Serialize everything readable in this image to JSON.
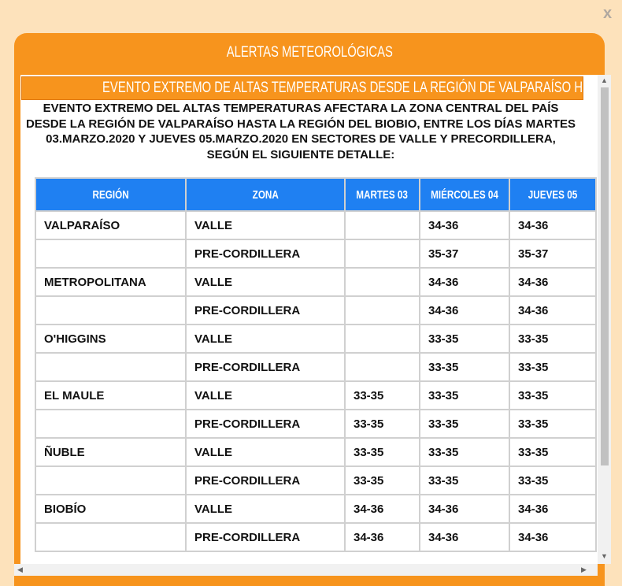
{
  "close_label": "x",
  "modal": {
    "title": "ALERTAS METEOROLÓGICAS",
    "banner": "EVENTO EXTREMO DE ALTAS TEMPERATURAS DESDE LA REGIÓN DE VALPARAÍSO HASTA EL BIOBIO",
    "description": "EVENTO EXTREMO DEL ALTAS TEMPERATURAS AFECTARA LA ZONA CENTRAL DEL PAÍS DESDE LA REGIÓN DE VALPARAÍSO HASTA LA REGIÓN DEL BIOBIO, ENTRE LOS DÍAS MARTES 03.MARZO.2020 Y JUEVES 05.MARZO.2020 EN SECTORES DE VALLE Y PRECORDILLERA, SEGÚN EL SIGUIENTE DETALLE:",
    "table": {
      "headers": [
        "REGIÓN",
        "ZONA",
        "MARTES 03",
        "MIÉRCOLES 04",
        "JUEVES 05"
      ],
      "rows": [
        [
          "VALPARAÍSO",
          "VALLE",
          null,
          "34-36",
          "34-36"
        ],
        [
          null,
          "PRE-CORDILLERA",
          null,
          "35-37",
          "35-37"
        ],
        [
          "METROPOLITANA",
          "VALLE",
          null,
          "34-36",
          "34-36"
        ],
        [
          null,
          "PRE-CORDILLERA",
          null,
          "34-36",
          "34-36"
        ],
        [
          "O'HIGGINS",
          "VALLE",
          null,
          "33-35",
          "33-35"
        ],
        [
          null,
          "PRE-CORDILLERA",
          null,
          "33-35",
          "33-35"
        ],
        [
          "EL MAULE",
          "VALLE",
          "33-35",
          "33-35",
          "33-35"
        ],
        [
          null,
          "PRE-CORDILLERA",
          "33-35",
          "33-35",
          "33-35"
        ],
        [
          "ÑUBLE",
          "VALLE",
          "33-35",
          "33-35",
          "33-35"
        ],
        [
          null,
          "PRE-CORDILLERA",
          "33-35",
          "33-35",
          "33-35"
        ],
        [
          "BIOBÍO",
          "VALLE",
          "34-36",
          "34-36",
          "34-36"
        ],
        [
          null,
          "PRE-CORDILLERA",
          "34-36",
          "34-36",
          "34-36"
        ]
      ]
    }
  }
}
